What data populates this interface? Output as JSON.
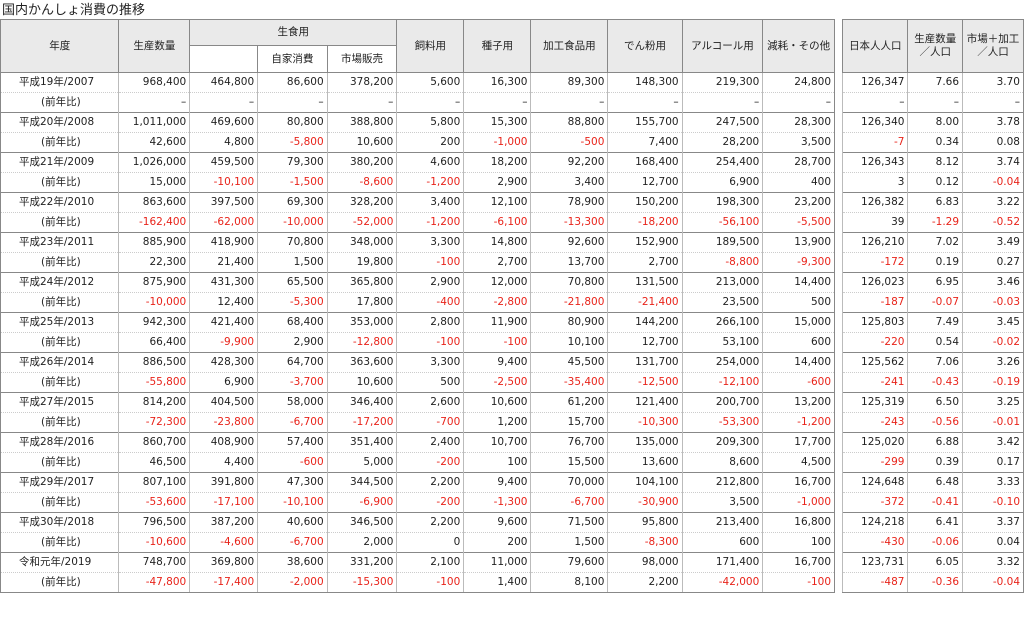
{
  "title": "国内かんしょ消費の推移",
  "headers": {
    "year": "年度",
    "production": "生産数量",
    "food": "生食用",
    "food_self": "自家消費",
    "food_market": "市場販売",
    "feed": "飼料用",
    "seed": "種子用",
    "processed": "加工食品用",
    "starch": "でん粉用",
    "alcohol": "アルコール用",
    "loss": "減耗・その他",
    "population": "日本人人口",
    "prod_per_cap": "生産数量\n／人口",
    "market_per_cap": "市場＋加工\n／人口"
  },
  "prev_label": "(前年比)",
  "colors": {
    "negative": "#e8231a",
    "header_bg": "#eaeaea"
  },
  "rows": [
    {
      "year": "平成19年/2007",
      "main": [
        "968,400",
        "464,800",
        "86,600",
        "378,200",
        "5,600",
        "16,300",
        "89,300",
        "148,300",
        "219,300",
        "24,800",
        "126,347",
        "7.66",
        "3.70"
      ],
      "diff": [
        "–",
        "–",
        "–",
        "–",
        "–",
        "–",
        "–",
        "–",
        "–",
        "–",
        "–",
        "–",
        "–"
      ]
    },
    {
      "year": "平成20年/2008",
      "main": [
        "1,011,000",
        "469,600",
        "80,800",
        "388,800",
        "5,800",
        "15,300",
        "88,800",
        "155,700",
        "247,500",
        "28,300",
        "126,340",
        "8.00",
        "3.78"
      ],
      "diff": [
        "42,600",
        "4,800",
        "-5,800",
        "10,600",
        "200",
        "-1,000",
        "-500",
        "7,400",
        "28,200",
        "3,500",
        "-7",
        "0.34",
        "0.08"
      ]
    },
    {
      "year": "平成21年/2009",
      "main": [
        "1,026,000",
        "459,500",
        "79,300",
        "380,200",
        "4,600",
        "18,200",
        "92,200",
        "168,400",
        "254,400",
        "28,700",
        "126,343",
        "8.12",
        "3.74"
      ],
      "diff": [
        "15,000",
        "-10,100",
        "-1,500",
        "-8,600",
        "-1,200",
        "2,900",
        "3,400",
        "12,700",
        "6,900",
        "400",
        "3",
        "0.12",
        "-0.04"
      ]
    },
    {
      "year": "平成22年/2010",
      "main": [
        "863,600",
        "397,500",
        "69,300",
        "328,200",
        "3,400",
        "12,100",
        "78,900",
        "150,200",
        "198,300",
        "23,200",
        "126,382",
        "6.83",
        "3.22"
      ],
      "diff": [
        "-162,400",
        "-62,000",
        "-10,000",
        "-52,000",
        "-1,200",
        "-6,100",
        "-13,300",
        "-18,200",
        "-56,100",
        "-5,500",
        "39",
        "-1.29",
        "-0.52"
      ]
    },
    {
      "year": "平成23年/2011",
      "main": [
        "885,900",
        "418,900",
        "70,800",
        "348,000",
        "3,300",
        "14,800",
        "92,600",
        "152,900",
        "189,500",
        "13,900",
        "126,210",
        "7.02",
        "3.49"
      ],
      "diff": [
        "22,300",
        "21,400",
        "1,500",
        "19,800",
        "-100",
        "2,700",
        "13,700",
        "2,700",
        "-8,800",
        "-9,300",
        "-172",
        "0.19",
        "0.27"
      ]
    },
    {
      "year": "平成24年/2012",
      "main": [
        "875,900",
        "431,300",
        "65,500",
        "365,800",
        "2,900",
        "12,000",
        "70,800",
        "131,500",
        "213,000",
        "14,400",
        "126,023",
        "6.95",
        "3.46"
      ],
      "diff": [
        "-10,000",
        "12,400",
        "-5,300",
        "17,800",
        "-400",
        "-2,800",
        "-21,800",
        "-21,400",
        "23,500",
        "500",
        "-187",
        "-0.07",
        "-0.03"
      ]
    },
    {
      "year": "平成25年/2013",
      "main": [
        "942,300",
        "421,400",
        "68,400",
        "353,000",
        "2,800",
        "11,900",
        "80,900",
        "144,200",
        "266,100",
        "15,000",
        "125,803",
        "7.49",
        "3.45"
      ],
      "diff": [
        "66,400",
        "-9,900",
        "2,900",
        "-12,800",
        "-100",
        "-100",
        "10,100",
        "12,700",
        "53,100",
        "600",
        "-220",
        "0.54",
        "-0.02"
      ]
    },
    {
      "year": "平成26年/2014",
      "main": [
        "886,500",
        "428,300",
        "64,700",
        "363,600",
        "3,300",
        "9,400",
        "45,500",
        "131,700",
        "254,000",
        "14,400",
        "125,562",
        "7.06",
        "3.26"
      ],
      "diff": [
        "-55,800",
        "6,900",
        "-3,700",
        "10,600",
        "500",
        "-2,500",
        "-35,400",
        "-12,500",
        "-12,100",
        "-600",
        "-241",
        "-0.43",
        "-0.19"
      ]
    },
    {
      "year": "平成27年/2015",
      "main": [
        "814,200",
        "404,500",
        "58,000",
        "346,400",
        "2,600",
        "10,600",
        "61,200",
        "121,400",
        "200,700",
        "13,200",
        "125,319",
        "6.50",
        "3.25"
      ],
      "diff": [
        "-72,300",
        "-23,800",
        "-6,700",
        "-17,200",
        "-700",
        "1,200",
        "15,700",
        "-10,300",
        "-53,300",
        "-1,200",
        "-243",
        "-0.56",
        "-0.01"
      ]
    },
    {
      "year": "平成28年/2016",
      "main": [
        "860,700",
        "408,900",
        "57,400",
        "351,400",
        "2,400",
        "10,700",
        "76,700",
        "135,000",
        "209,300",
        "17,700",
        "125,020",
        "6.88",
        "3.42"
      ],
      "diff": [
        "46,500",
        "4,400",
        "-600",
        "5,000",
        "-200",
        "100",
        "15,500",
        "13,600",
        "8,600",
        "4,500",
        "-299",
        "0.39",
        "0.17"
      ]
    },
    {
      "year": "平成29年/2017",
      "main": [
        "807,100",
        "391,800",
        "47,300",
        "344,500",
        "2,200",
        "9,400",
        "70,000",
        "104,100",
        "212,800",
        "16,700",
        "124,648",
        "6.48",
        "3.33"
      ],
      "diff": [
        "-53,600",
        "-17,100",
        "-10,100",
        "-6,900",
        "-200",
        "-1,300",
        "-6,700",
        "-30,900",
        "3,500",
        "-1,000",
        "-372",
        "-0.41",
        "-0.10"
      ]
    },
    {
      "year": "平成30年/2018",
      "main": [
        "796,500",
        "387,200",
        "40,600",
        "346,500",
        "2,200",
        "9,600",
        "71,500",
        "95,800",
        "213,400",
        "16,800",
        "124,218",
        "6.41",
        "3.37"
      ],
      "diff": [
        "-10,600",
        "-4,600",
        "-6,700",
        "2,000",
        "0",
        "200",
        "1,500",
        "-8,300",
        "600",
        "100",
        "-430",
        "-0.06",
        "0.04"
      ]
    },
    {
      "year": "令和元年/2019",
      "main": [
        "748,700",
        "369,800",
        "38,600",
        "331,200",
        "2,100",
        "11,000",
        "79,600",
        "98,000",
        "171,400",
        "16,700",
        "123,731",
        "6.05",
        "3.32"
      ],
      "diff": [
        "-47,800",
        "-17,400",
        "-2,000",
        "-15,300",
        "-100",
        "1,400",
        "8,100",
        "2,200",
        "-42,000",
        "-100",
        "-487",
        "-0.36",
        "-0.04"
      ]
    }
  ]
}
